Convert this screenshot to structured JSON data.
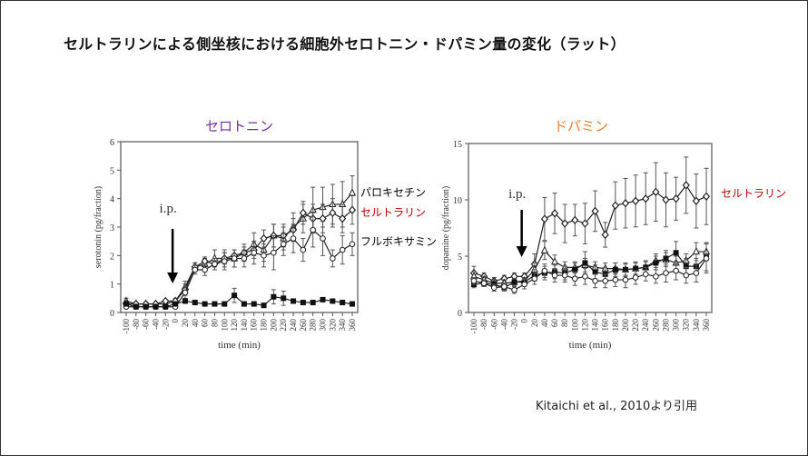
{
  "slide": {
    "title": "セルトラリンによる側坐核における細胞外セロトニン・ドパミン量の変化（ラット）",
    "citation": "Kitaichi et al., 2010より引用"
  },
  "colors": {
    "serotonin_title": "#7030a0",
    "dopamine_title": "#ed7d31",
    "sertraline_label": "#c00000"
  },
  "chart_data": [
    {
      "type": "line",
      "title": "セロトニン",
      "xlabel": "time (min)",
      "ylabel": "serotonin (pg/fraction)",
      "annotation": "i.p.",
      "annotation_x": 0,
      "ylim": [
        0,
        6
      ],
      "yticks": [
        0,
        1,
        2,
        3,
        4,
        5,
        6
      ],
      "x": [
        -100,
        -80,
        -60,
        -40,
        -20,
        0,
        20,
        40,
        60,
        80,
        100,
        120,
        140,
        160,
        180,
        200,
        220,
        240,
        260,
        280,
        300,
        320,
        340,
        360
      ],
      "grid": false,
      "series": [
        {
          "name": "パロキセチン",
          "marker": "triangle-open",
          "label_color": "#000000",
          "values": [
            0.4,
            0.3,
            0.3,
            0.3,
            0.3,
            0.4,
            0.9,
            1.6,
            1.7,
            1.9,
            1.9,
            1.9,
            2.1,
            2.4,
            2.2,
            2.7,
            2.6,
            3.0,
            3.3,
            3.6,
            3.7,
            3.8,
            3.8,
            4.2
          ],
          "error": [
            0.1,
            0.05,
            0.05,
            0.05,
            0.05,
            0.1,
            0.2,
            0.15,
            0.2,
            0.3,
            0.3,
            0.3,
            0.3,
            0.4,
            0.4,
            0.4,
            0.4,
            0.5,
            0.5,
            0.8,
            0.7,
            0.7,
            0.8,
            0.6
          ]
        },
        {
          "name": "セルトラリン",
          "marker": "diamond-open",
          "label_color": "#c00000",
          "values": [
            0.3,
            0.3,
            0.3,
            0.3,
            0.4,
            0.4,
            0.8,
            1.6,
            1.8,
            1.7,
            1.9,
            2.0,
            2.1,
            2.2,
            2.6,
            2.7,
            2.7,
            2.9,
            3.5,
            3.3,
            3.3,
            3.5,
            3.3,
            3.6
          ],
          "error": [
            0.05,
            0.05,
            0.05,
            0.05,
            0.05,
            0.05,
            0.2,
            0.15,
            0.15,
            0.2,
            0.2,
            0.2,
            0.2,
            0.3,
            0.3,
            0.4,
            0.4,
            0.4,
            0.4,
            0.5,
            0.5,
            0.5,
            0.5,
            0.5
          ]
        },
        {
          "name": "フルボキサミン",
          "marker": "circle-open",
          "label_color": "#000000",
          "values": [
            0.2,
            0.2,
            0.2,
            0.2,
            0.2,
            0.2,
            0.7,
            1.5,
            1.5,
            1.7,
            1.8,
            1.9,
            1.9,
            2.1,
            2.0,
            2.1,
            2.4,
            2.6,
            2.2,
            2.9,
            2.6,
            1.9,
            2.2,
            2.4
          ],
          "error": [
            0.05,
            0.05,
            0.05,
            0.05,
            0.05,
            0.05,
            0.2,
            0.15,
            0.2,
            0.2,
            0.3,
            0.3,
            0.3,
            0.4,
            0.4,
            0.6,
            0.4,
            0.5,
            0.4,
            0.6,
            0.6,
            0.3,
            0.5,
            0.4
          ]
        },
        {
          "marker": "square-filled",
          "values": [
            0.3,
            0.2,
            0.2,
            0.2,
            0.2,
            0.3,
            0.4,
            0.35,
            0.3,
            0.3,
            0.3,
            0.6,
            0.3,
            0.3,
            0.25,
            0.55,
            0.5,
            0.4,
            0.35,
            0.35,
            0.45,
            0.4,
            0.35,
            0.3
          ],
          "error": [
            0.05,
            0.05,
            0.05,
            0.05,
            0.05,
            0.05,
            0.05,
            0.05,
            0.05,
            0.05,
            0.05,
            0.25,
            0.05,
            0.05,
            0.05,
            0.25,
            0.25,
            0.05,
            0.05,
            0.05,
            0.05,
            0.05,
            0.05,
            0.05
          ]
        }
      ]
    },
    {
      "type": "line",
      "title": "ドパミン",
      "xlabel": "time (min)",
      "ylabel": "dopamine (pg/fraction)",
      "annotation": "i.p.",
      "annotation_x": 0,
      "ylim": [
        0,
        15
      ],
      "yticks": [
        0,
        5,
        10,
        15
      ],
      "x": [
        -100,
        -80,
        -60,
        -40,
        -20,
        0,
        20,
        40,
        60,
        80,
        100,
        120,
        140,
        160,
        180,
        200,
        220,
        240,
        260,
        280,
        300,
        320,
        340,
        360
      ],
      "grid": false,
      "series": [
        {
          "name": "セルトラリン",
          "marker": "diamond-open",
          "label_color": "#c00000",
          "values": [
            3.5,
            3.2,
            2.8,
            3.0,
            3.2,
            3.2,
            4.3,
            8.3,
            8.8,
            7.9,
            8.2,
            7.9,
            9.0,
            6.9,
            9.5,
            9.7,
            9.9,
            10.1,
            10.7,
            10.0,
            10.1,
            11.3,
            9.9,
            10.3
          ],
          "error": [
            0.6,
            0.3,
            0.3,
            0.3,
            0.3,
            0.3,
            0.9,
            1.9,
            1.8,
            1.7,
            1.4,
            1.8,
            1.8,
            1.1,
            2.1,
            2.2,
            2.3,
            2.3,
            2.6,
            2.4,
            1.9,
            2.5,
            2.4,
            2.5
          ]
        },
        {
          "marker": "triangle-open",
          "values": [
            3.2,
            2.9,
            2.6,
            2.6,
            2.7,
            2.8,
            3.8,
            5.5,
            4.5,
            4.0,
            4.0,
            4.2,
            4.0,
            3.9,
            3.9,
            3.8,
            3.9,
            4.0,
            4.6,
            4.7,
            4.4,
            4.6,
            5.4,
            5.4
          ],
          "error": [
            0.4,
            0.3,
            0.3,
            0.3,
            0.3,
            0.3,
            0.6,
            0.8,
            0.6,
            0.5,
            0.5,
            0.6,
            0.5,
            0.5,
            0.5,
            0.5,
            0.5,
            0.5,
            0.6,
            0.6,
            0.6,
            0.6,
            0.8,
            0.8
          ]
        },
        {
          "marker": "square-filled",
          "values": [
            2.5,
            2.6,
            2.5,
            2.2,
            2.7,
            2.7,
            3.3,
            3.5,
            3.6,
            3.5,
            3.8,
            4.4,
            3.6,
            3.4,
            3.8,
            3.8,
            3.9,
            4.0,
            4.4,
            4.8,
            5.3,
            4.1,
            4.1,
            4.9
          ],
          "error": [
            0.3,
            0.3,
            0.3,
            0.3,
            0.3,
            0.3,
            0.5,
            0.6,
            0.6,
            0.6,
            0.6,
            1.0,
            0.6,
            0.6,
            0.6,
            0.6,
            0.6,
            0.6,
            0.6,
            0.7,
            1.0,
            0.7,
            0.7,
            1.2
          ]
        },
        {
          "marker": "circle-open",
          "values": [
            2.8,
            2.6,
            2.2,
            2.3,
            2.0,
            2.5,
            3.0,
            3.7,
            3.3,
            3.3,
            3.0,
            3.2,
            2.8,
            2.8,
            2.9,
            2.9,
            3.1,
            3.4,
            3.2,
            3.5,
            3.7,
            3.3,
            3.5,
            4.8
          ],
          "error": [
            0.3,
            0.3,
            0.3,
            0.3,
            0.3,
            0.4,
            0.5,
            0.6,
            0.6,
            0.6,
            0.6,
            0.7,
            0.6,
            0.6,
            0.6,
            0.7,
            0.6,
            0.6,
            0.6,
            0.8,
            0.8,
            0.7,
            0.8,
            1.3
          ]
        }
      ]
    }
  ]
}
